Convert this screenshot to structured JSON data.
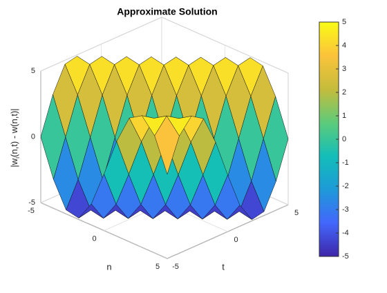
{
  "chart_data": {
    "type": "surface",
    "title": "Approximate Solution",
    "xlabel": "n",
    "ylabel": "t",
    "zlabel": {
      "pre": "|w",
      "sub": "i",
      "post": "(n,t) - w(n,t)|"
    },
    "x": [
      -5,
      -4,
      -3,
      -2,
      -1,
      0,
      1,
      2,
      3,
      4,
      5
    ],
    "y": [
      -5,
      -4,
      -3,
      -2,
      -1,
      0,
      1,
      2,
      3,
      4,
      5
    ],
    "z": [
      [
        0,
        2.8,
        4.7,
        4.9,
        3.4,
        0.7,
        -2.2,
        -4.4,
        -5.0,
        -3.9,
        -1.4
      ],
      [
        -2.8,
        0,
        2.8,
        4.7,
        4.9,
        3.4,
        0.7,
        -2.2,
        -4.4,
        -5.0,
        -3.9
      ],
      [
        -4.7,
        -2.8,
        0,
        2.8,
        4.7,
        4.9,
        3.4,
        0.7,
        -2.2,
        -4.4,
        -5.0
      ],
      [
        -4.9,
        -4.7,
        -2.8,
        0,
        2.8,
        4.7,
        4.9,
        3.4,
        0.7,
        -2.2,
        -4.4
      ],
      [
        -3.4,
        -4.9,
        -4.7,
        -2.8,
        0,
        2.8,
        4.7,
        4.9,
        3.4,
        0.7,
        -2.2
      ],
      [
        -0.7,
        -3.4,
        -4.9,
        -4.7,
        -2.8,
        0,
        2.8,
        4.7,
        4.9,
        3.4,
        0.7
      ],
      [
        2.2,
        -0.7,
        -3.4,
        -4.9,
        -4.7,
        -2.8,
        0,
        2.8,
        4.7,
        4.9,
        3.4
      ],
      [
        4.4,
        2.2,
        -0.7,
        -3.4,
        -4.9,
        -4.7,
        -2.8,
        0,
        2.8,
        4.7,
        4.9
      ],
      [
        5.0,
        4.4,
        2.2,
        -0.7,
        -3.4,
        -4.9,
        -4.7,
        -2.8,
        0,
        2.8,
        4.7
      ],
      [
        3.9,
        5.0,
        4.4,
        2.2,
        -0.7,
        -3.4,
        -4.9,
        -4.7,
        -2.8,
        0,
        2.8
      ],
      [
        1.4,
        3.9,
        5.0,
        4.4,
        2.2,
        -0.7,
        -3.4,
        -4.9,
        -4.7,
        -2.8,
        0
      ]
    ],
    "xlim": [
      -5,
      5
    ],
    "xticks": [
      -5,
      0,
      5
    ],
    "ylim": [
      -5,
      5
    ],
    "yticks": [
      -5,
      0,
      5
    ],
    "zlim": [
      -5,
      5
    ],
    "zticks": [
      -5,
      0,
      5
    ],
    "clim": [
      -5,
      5
    ],
    "cticks": [
      -5,
      -4,
      -3,
      -2,
      -1,
      0,
      1,
      2,
      3,
      4,
      5
    ],
    "grid": true,
    "colorbar": true
  }
}
